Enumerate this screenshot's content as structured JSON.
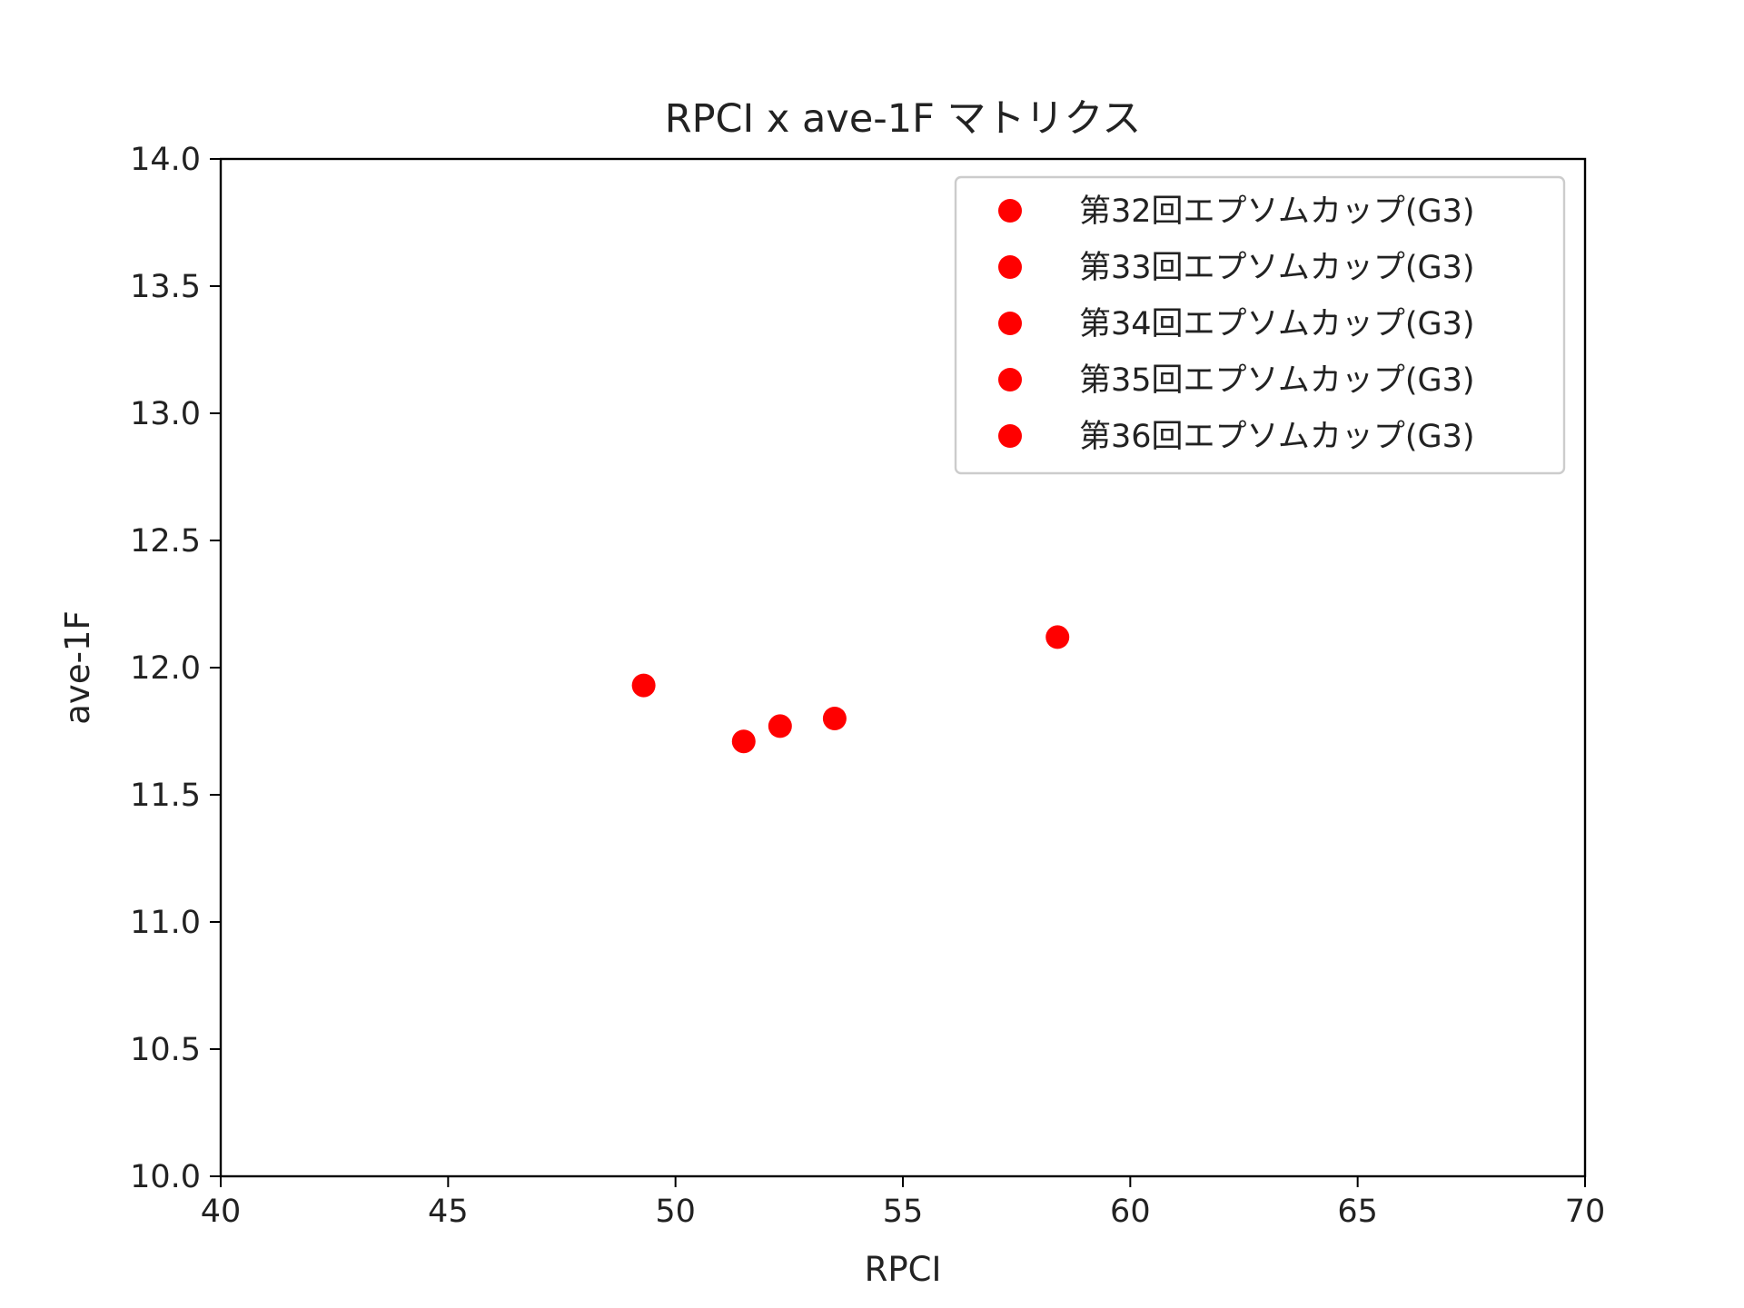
{
  "chart_data": {
    "type": "scatter",
    "title": "RPCI x ave-1F マトリクス",
    "xlabel": "RPCI",
    "ylabel": "ave-1F",
    "xlim": [
      40,
      70
    ],
    "ylim": [
      10.0,
      14.0
    ],
    "x_ticks": [
      "40",
      "45",
      "50",
      "55",
      "60",
      "65",
      "70"
    ],
    "y_ticks": [
      "10.0",
      "10.5",
      "11.0",
      "11.5",
      "12.0",
      "12.5",
      "13.0",
      "13.5",
      "14.0"
    ],
    "grid": false,
    "legend_position": "top-right",
    "marker_color": "#ff0000",
    "series": [
      {
        "name": "第32回エプソムカップ(G3)",
        "x": 51.5,
        "y": 11.71
      },
      {
        "name": "第33回エプソムカップ(G3)",
        "x": 52.3,
        "y": 11.77
      },
      {
        "name": "第34回エプソムカップ(G3)",
        "x": 49.3,
        "y": 11.93
      },
      {
        "name": "第35回エプソムカップ(G3)",
        "x": 53.5,
        "y": 11.8
      },
      {
        "name": "第36回エプソムカップ(G3)",
        "x": 58.4,
        "y": 12.12
      }
    ]
  }
}
